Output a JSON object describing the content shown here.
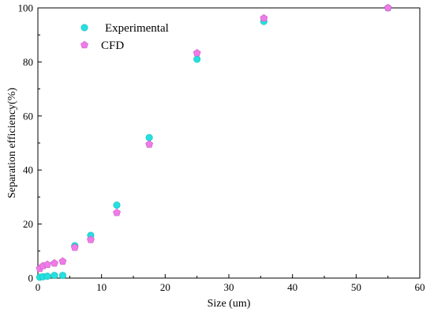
{
  "chart_data": {
    "type": "scatter",
    "xlabel": "Size (um)",
    "ylabel": "Separation efficiency(%)",
    "xlim": [
      0,
      60
    ],
    "ylim": [
      0,
      100
    ],
    "xticks": [
      0,
      10,
      20,
      30,
      40,
      50,
      60
    ],
    "yticks": [
      0,
      20,
      40,
      60,
      80,
      100
    ],
    "grid": false,
    "legend_position": "top-left",
    "series": [
      {
        "name": "Experimental",
        "marker": "circle",
        "color": "#26e0e0",
        "x": [
          0.3,
          0.8,
          1.5,
          2.6,
          3.9,
          5.8,
          8.3,
          12.4,
          17.5,
          25.0,
          35.5,
          55.0
        ],
        "y": [
          0.3,
          0.5,
          0.7,
          1.0,
          1.0,
          12.0,
          15.8,
          27.0,
          52.0,
          81.0,
          95.0,
          100.0
        ]
      },
      {
        "name": "CFD",
        "marker": "pentagon",
        "color": "#f07ae8",
        "x": [
          0.3,
          0.8,
          1.5,
          2.6,
          3.9,
          5.8,
          8.3,
          12.4,
          17.5,
          25.0,
          35.5,
          55.0
        ],
        "y": [
          3.5,
          4.5,
          5.0,
          5.5,
          6.2,
          11.3,
          14.2,
          24.2,
          49.5,
          83.3,
          96.2,
          100.0
        ]
      }
    ]
  }
}
